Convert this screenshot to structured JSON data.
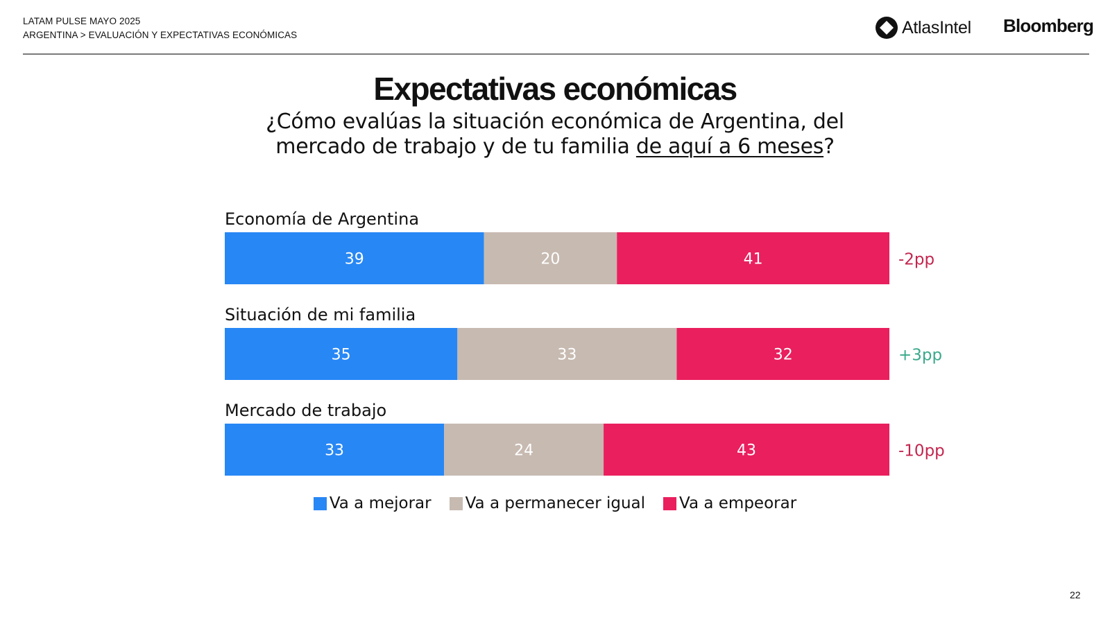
{
  "header": {
    "line1": "LATAM PULSE MAYO 2025",
    "line2": "ARGENTINA > EVALUACIÓN Y EXPECTATIVAS ECONÓMICAS"
  },
  "logos": {
    "atlas": "AtlasIntel",
    "bloomberg": "Bloomberg"
  },
  "title": "Expectativas económicas",
  "subtitle": {
    "line1": "¿Cómo evalúas la situación económica de Argentina, del",
    "line2_prefix": "mercado de trabajo y de tu familia ",
    "line2_underlined": "de aquí a 6 meses",
    "line2_suffix": "?"
  },
  "page_number": "22",
  "chart_data": {
    "type": "bar",
    "orientation": "horizontal",
    "stacked": true,
    "categories": [
      "Economía de Argentina",
      "Situación de mi familia",
      "Mercado de trabajo"
    ],
    "series": [
      {
        "name": "Va a mejorar",
        "color": "#2787f5",
        "values": [
          39,
          35,
          33
        ]
      },
      {
        "name": "Va a permanecer igual",
        "color": "#c7bab1",
        "values": [
          20,
          33,
          24
        ]
      },
      {
        "name": "Va a empeorar",
        "color": "#ea1f5e",
        "values": [
          41,
          32,
          43
        ]
      }
    ],
    "changes": [
      {
        "label": "-2pp",
        "color": "#c3264f"
      },
      {
        "label": "+3pp",
        "color": "#3aa98a"
      },
      {
        "label": "-10pp",
        "color": "#c3264f"
      }
    ],
    "xlim": [
      0,
      100
    ],
    "legend_position": "bottom"
  }
}
